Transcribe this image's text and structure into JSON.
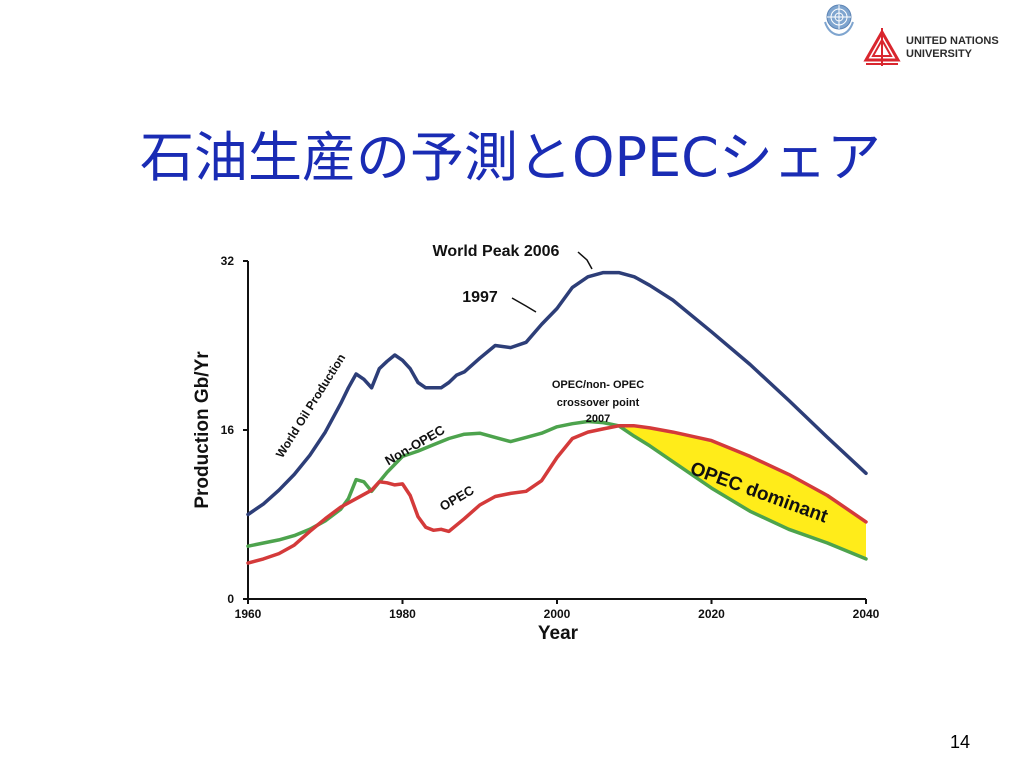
{
  "slide": {
    "title": "石油生産の予測とOPECシェア",
    "page_number": "14"
  },
  "logos": {
    "un_emblem": "un-emblem-icon",
    "unu_mark": "unu-mark-icon",
    "unu_name_line1": "UNITED NATIONS",
    "unu_name_line2": "UNIVERSITY"
  },
  "colors": {
    "title": "#1a2cb4",
    "world": "#2d3e78",
    "non_opec": "#4da34d",
    "opec": "#d43a3a",
    "opec_dominant_fill": "#ffec1a"
  },
  "chart_data": {
    "type": "line",
    "xlabel": "Year",
    "ylabel": "Production Gb/Yr",
    "xlim": [
      1960,
      2040
    ],
    "ylim": [
      0,
      32
    ],
    "xticks": [
      "1960",
      "1980",
      "2000",
      "2020",
      "2040"
    ],
    "yticks": [
      "0",
      "16",
      "32"
    ],
    "grid": false,
    "series": [
      {
        "name": "World Oil Production",
        "color": "#2d3e78",
        "x": [
          1960,
          1962,
          1964,
          1966,
          1968,
          1970,
          1972,
          1973,
          1974,
          1975,
          1976,
          1977,
          1978,
          1979,
          1980,
          1981,
          1982,
          1983,
          1984,
          1985,
          1986,
          1987,
          1988,
          1990,
          1992,
          1994,
          1996,
          1998,
          2000,
          2002,
          2004,
          2006,
          2008,
          2010,
          2012,
          2015,
          2020,
          2025,
          2030,
          2035,
          2040
        ],
        "y": [
          8.0,
          9.0,
          10.3,
          11.8,
          13.6,
          15.8,
          18.5,
          20.0,
          21.3,
          20.8,
          20.0,
          21.8,
          22.5,
          23.1,
          22.6,
          21.8,
          20.5,
          20.0,
          20.0,
          20.0,
          20.5,
          21.2,
          21.5,
          22.8,
          24.0,
          23.8,
          24.3,
          26.0,
          27.5,
          29.5,
          30.5,
          30.9,
          30.9,
          30.5,
          29.7,
          28.3,
          25.3,
          22.2,
          18.8,
          15.3,
          11.9
        ]
      },
      {
        "name": "Non-OPEC",
        "color": "#4da34d",
        "x": [
          1960,
          1962,
          1964,
          1966,
          1968,
          1970,
          1972,
          1973,
          1974,
          1975,
          1976,
          1978,
          1980,
          1982,
          1984,
          1986,
          1988,
          1990,
          1992,
          1994,
          1996,
          1998,
          2000,
          2002,
          2004,
          2006,
          2008,
          2010,
          2012,
          2015,
          2020,
          2025,
          2030,
          2035,
          2040
        ],
        "y": [
          5.0,
          5.3,
          5.6,
          6.0,
          6.6,
          7.4,
          8.5,
          9.5,
          11.3,
          11.1,
          10.2,
          12.0,
          13.5,
          14.0,
          14.6,
          15.2,
          15.6,
          15.7,
          15.3,
          14.9,
          15.3,
          15.7,
          16.3,
          16.6,
          16.8,
          16.7,
          16.4,
          15.4,
          14.5,
          13.0,
          10.5,
          8.3,
          6.6,
          5.3,
          3.8
        ]
      },
      {
        "name": "OPEC",
        "color": "#d43a3a",
        "x": [
          1960,
          1962,
          1964,
          1966,
          1968,
          1970,
          1972,
          1974,
          1976,
          1977,
          1978,
          1979,
          1980,
          1981,
          1982,
          1983,
          1984,
          1985,
          1986,
          1988,
          1990,
          1992,
          1994,
          1996,
          1998,
          2000,
          2002,
          2004,
          2006,
          2008,
          2010,
          2012,
          2015,
          2020,
          2025,
          2030,
          2035,
          2040
        ],
        "y": [
          3.4,
          3.8,
          4.3,
          5.1,
          6.4,
          7.6,
          8.7,
          9.5,
          10.3,
          11.1,
          11.0,
          10.8,
          10.9,
          9.8,
          7.8,
          6.8,
          6.5,
          6.6,
          6.4,
          7.6,
          8.9,
          9.7,
          10.0,
          10.2,
          11.2,
          13.4,
          15.2,
          15.8,
          16.1,
          16.4,
          16.4,
          16.2,
          15.8,
          15.0,
          13.5,
          11.8,
          9.8,
          7.3
        ]
      }
    ],
    "fill_between": {
      "label": "OPEC dominant",
      "color": "#ffec1a",
      "from_year": 2008
    },
    "annotations": [
      {
        "text": "World Peak 2006",
        "x": 2006,
        "y": 30.9
      },
      {
        "text": "1997",
        "x": 1997,
        "y": 24.5
      },
      {
        "text": "OPEC/non- OPEC",
        "x": 2007,
        "y": 16.4
      },
      {
        "text": "crossover point",
        "x": 2007,
        "y": 16.4
      },
      {
        "text": "2007",
        "x": 2007,
        "y": 16.4
      }
    ]
  }
}
